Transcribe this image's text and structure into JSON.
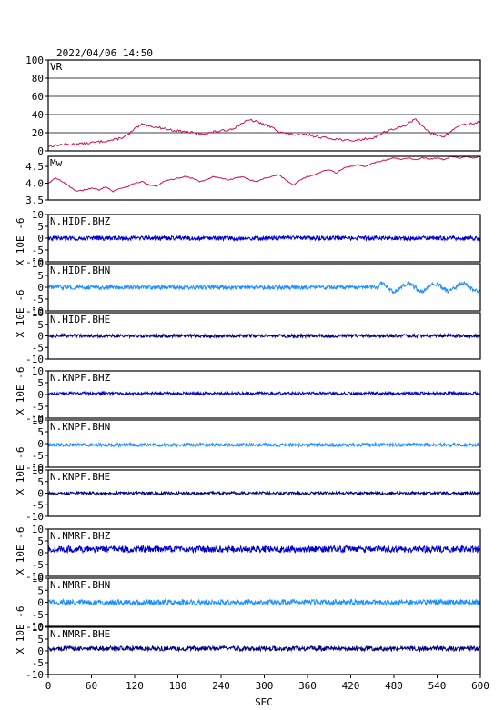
{
  "header": {
    "timestamp": "2022/04/06  14:50"
  },
  "xaxis": {
    "label": "SEC",
    "ticks": [
      0,
      60,
      120,
      180,
      240,
      300,
      360,
      420,
      480,
      540,
      600
    ],
    "range": [
      0,
      600
    ]
  },
  "unit_label": "X 10E -6",
  "colors": {
    "vr": "#d0104c",
    "mw": "#d0104c",
    "bhz": "#0000cc",
    "bhn": "#1e90ff",
    "bhe": "#000080",
    "frame": "#000000"
  },
  "chart_data": [
    {
      "type": "line",
      "id": "vr",
      "label": "VR",
      "ylim": [
        0,
        100
      ],
      "yticks": [
        0,
        20,
        40,
        60,
        80,
        100
      ],
      "grid": true,
      "x": [
        0,
        10,
        20,
        30,
        40,
        50,
        60,
        70,
        80,
        90,
        100,
        110,
        120,
        130,
        140,
        150,
        160,
        170,
        180,
        190,
        200,
        210,
        220,
        230,
        240,
        250,
        260,
        270,
        280,
        290,
        300,
        310,
        320,
        330,
        340,
        350,
        360,
        370,
        380,
        390,
        400,
        410,
        420,
        430,
        440,
        450,
        460,
        470,
        480,
        490,
        500,
        510,
        520,
        530,
        540,
        550,
        560,
        570,
        580,
        590,
        600
      ],
      "y": [
        5,
        6,
        7,
        7,
        8,
        8,
        9,
        10,
        11,
        12,
        14,
        17,
        24,
        29,
        28,
        26,
        25,
        23,
        22,
        21,
        20,
        19,
        19,
        21,
        22,
        23,
        26,
        31,
        34,
        32,
        29,
        26,
        22,
        19,
        18,
        17,
        18,
        16,
        15,
        14,
        13,
        12,
        11,
        12,
        13,
        14,
        18,
        22,
        24,
        26,
        30,
        35,
        28,
        20,
        17,
        16,
        22,
        28,
        29,
        30,
        32
      ]
    },
    {
      "type": "line",
      "id": "mw",
      "label": "Mw",
      "ylim": [
        3.5,
        4.8
      ],
      "yticks": [
        3.5,
        4.0,
        4.5
      ],
      "ytick_labels": [
        "3.5",
        "4.0",
        "4.5"
      ],
      "grid": false,
      "x": [
        0,
        10,
        20,
        30,
        40,
        50,
        60,
        70,
        80,
        90,
        100,
        110,
        120,
        130,
        140,
        150,
        160,
        170,
        180,
        190,
        200,
        210,
        220,
        230,
        240,
        250,
        260,
        270,
        280,
        290,
        300,
        310,
        320,
        330,
        340,
        350,
        360,
        370,
        380,
        390,
        400,
        410,
        420,
        430,
        440,
        450,
        460,
        470,
        480,
        490,
        500,
        510,
        520,
        530,
        540,
        550,
        560,
        570,
        580,
        590,
        600
      ],
      "y": [
        4.0,
        4.15,
        4.05,
        3.9,
        3.75,
        3.8,
        3.85,
        3.8,
        3.9,
        3.75,
        3.85,
        3.9,
        4.0,
        4.05,
        3.95,
        3.9,
        4.05,
        4.1,
        4.15,
        4.2,
        4.15,
        4.05,
        4.1,
        4.2,
        4.15,
        4.1,
        4.15,
        4.2,
        4.1,
        4.05,
        4.15,
        4.2,
        4.25,
        4.1,
        3.95,
        4.1,
        4.2,
        4.25,
        4.35,
        4.4,
        4.3,
        4.45,
        4.5,
        4.55,
        4.5,
        4.6,
        4.65,
        4.7,
        4.75,
        4.7,
        4.75,
        4.7,
        4.75,
        4.72,
        4.75,
        4.7,
        4.8,
        4.75,
        4.78,
        4.75,
        4.8
      ]
    },
    {
      "type": "line",
      "id": "nhidf_bhz",
      "label": "N.HIDF.BHZ",
      "color_key": "bhz",
      "ylim": [
        -10,
        10
      ],
      "yticks": [
        -10,
        -5,
        0,
        5,
        10
      ],
      "offset": 0,
      "amplitude": 0.9,
      "burst": []
    },
    {
      "type": "line",
      "id": "nhidf_bhn",
      "label": "N.HIDF.BHN",
      "color_key": "bhn",
      "ylim": [
        -10,
        10
      ],
      "yticks": [
        -10,
        -5,
        0,
        5,
        10
      ],
      "offset": 0,
      "amplitude": 0.9,
      "burst": [
        460,
        600,
        1.6
      ]
    },
    {
      "type": "line",
      "id": "nhidf_bhe",
      "label": "N.HIDF.BHE",
      "color_key": "bhe",
      "ylim": [
        -10,
        10
      ],
      "yticks": [
        -10,
        -5,
        0,
        5,
        10
      ],
      "offset": 0,
      "amplitude": 0.7,
      "burst": []
    },
    {
      "type": "line",
      "id": "nknpf_bhz",
      "label": "N.KNPF.BHZ",
      "color_key": "bhz",
      "ylim": [
        -10,
        10
      ],
      "yticks": [
        -10,
        -5,
        0,
        5,
        10
      ],
      "offset": 0.5,
      "amplitude": 0.6,
      "burst": []
    },
    {
      "type": "line",
      "id": "nknpf_bhn",
      "label": "N.KNPF.BHN",
      "color_key": "bhn",
      "ylim": [
        -10,
        10
      ],
      "yticks": [
        -10,
        -5,
        0,
        5,
        10
      ],
      "offset": -0.5,
      "amplitude": 0.7,
      "burst": []
    },
    {
      "type": "line",
      "id": "nknpf_bhe",
      "label": "N.KNPF.BHE",
      "color_key": "bhe",
      "ylim": [
        -10,
        10
      ],
      "yticks": [
        -10,
        -5,
        0,
        5,
        10
      ],
      "offset": 0,
      "amplitude": 0.6,
      "burst": []
    },
    {
      "type": "line",
      "id": "nnmrf_bhz",
      "label": "N.NMRF.BHZ",
      "color_key": "bhz",
      "ylim": [
        -10,
        10
      ],
      "yticks": [
        -10,
        -5,
        0,
        5,
        10
      ],
      "offset": 1.5,
      "amplitude": 1.4,
      "burst": []
    },
    {
      "type": "line",
      "id": "nnmrf_bhn",
      "label": "N.NMRF.BHN",
      "color_key": "bhn",
      "ylim": [
        -10,
        10
      ],
      "yticks": [
        -10,
        -5,
        0,
        5,
        10
      ],
      "offset": 0,
      "amplitude": 1.1,
      "burst": []
    },
    {
      "type": "line",
      "id": "nnmrf_bhe",
      "label": "N.NMRF.BHE",
      "color_key": "bhe",
      "ylim": [
        -10,
        10
      ],
      "yticks": [
        -10,
        -5,
        0,
        5,
        10
      ],
      "offset": 1,
      "amplitude": 1.0,
      "burst": []
    }
  ]
}
